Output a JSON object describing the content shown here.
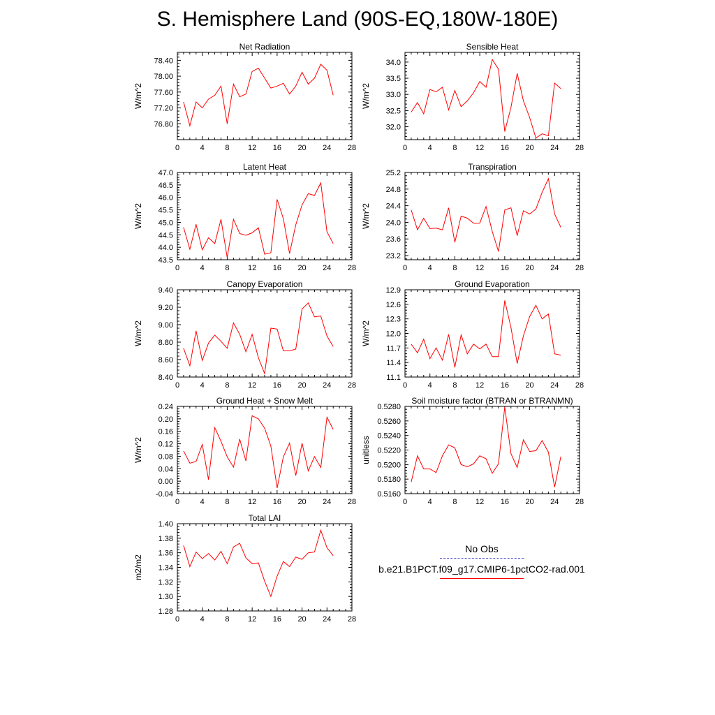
{
  "title": "S. Hemisphere Land (90S-EQ,180W-180E)",
  "colors": {
    "case": "#ff0000",
    "obs": "#4a4acf"
  },
  "legend": {
    "obs_label": "No Obs",
    "case_label": "b.e21.B1PCT.f09_g17.CMIP6-1pctCO2-rad.001"
  },
  "chart_data": [
    {
      "type": "line",
      "title": "Net Radiation",
      "ylabel": "W/m^2",
      "xlim": [
        0,
        28
      ],
      "xticks": [
        "0",
        "4",
        "8",
        "12",
        "16",
        "20",
        "24",
        "28"
      ],
      "ylim": [
        76.4,
        78.6
      ],
      "yticks": [
        "76.80",
        "77.20",
        "77.60",
        "78.00",
        "78.40"
      ],
      "series": [
        {
          "x": [
            1,
            2,
            3,
            4,
            5,
            6,
            7,
            8,
            9,
            10,
            11,
            12,
            13,
            14,
            15,
            16,
            17,
            18,
            19,
            20,
            21,
            22,
            23,
            24,
            25
          ],
          "values": [
            77.35,
            76.75,
            77.35,
            77.2,
            77.42,
            77.52,
            77.75,
            76.8,
            77.8,
            77.48,
            77.55,
            78.12,
            78.2,
            77.95,
            77.7,
            77.75,
            77.82,
            77.55,
            77.75,
            78.1,
            77.8,
            77.95,
            78.3,
            78.15,
            77.52
          ]
        }
      ]
    },
    {
      "type": "line",
      "title": "Sensible Heat",
      "ylabel": "W/m^2",
      "xlim": [
        0,
        28
      ],
      "xticks": [
        "0",
        "4",
        "8",
        "12",
        "16",
        "20",
        "24",
        "28"
      ],
      "ylim": [
        31.6,
        34.3
      ],
      "yticks": [
        "32.0",
        "32.5",
        "33.0",
        "33.5",
        "34.0"
      ],
      "series": [
        {
          "x": [
            1,
            2,
            3,
            4,
            5,
            6,
            7,
            8,
            9,
            10,
            11,
            12,
            13,
            14,
            15,
            16,
            17,
            18,
            19,
            20,
            21,
            22,
            23,
            24,
            25
          ],
          "values": [
            32.45,
            32.75,
            32.4,
            33.15,
            33.08,
            33.22,
            32.52,
            33.12,
            32.62,
            32.8,
            33.05,
            33.4,
            33.22,
            34.08,
            33.78,
            31.85,
            32.6,
            33.65,
            32.8,
            32.28,
            31.65,
            31.78,
            31.72,
            33.35,
            33.18
          ]
        }
      ]
    },
    {
      "type": "line",
      "title": "Latent Heat",
      "ylabel": "W/m^2",
      "xlim": [
        0,
        28
      ],
      "xticks": [
        "0",
        "4",
        "8",
        "12",
        "16",
        "20",
        "24",
        "28"
      ],
      "ylim": [
        43.5,
        47.0
      ],
      "yticks": [
        "43.5",
        "44.0",
        "44.5",
        "45.0",
        "45.5",
        "46.0",
        "46.5",
        "47.0"
      ],
      "series": [
        {
          "x": [
            1,
            2,
            3,
            4,
            5,
            6,
            7,
            8,
            9,
            10,
            11,
            12,
            13,
            14,
            15,
            16,
            17,
            18,
            19,
            20,
            21,
            22,
            23,
            24,
            25
          ],
          "values": [
            44.8,
            43.92,
            44.92,
            43.9,
            44.38,
            44.15,
            45.12,
            43.58,
            45.12,
            44.55,
            44.48,
            44.58,
            44.78,
            43.72,
            43.78,
            45.92,
            45.15,
            43.75,
            44.9,
            45.7,
            46.15,
            46.08,
            46.58,
            44.62,
            44.15
          ]
        }
      ]
    },
    {
      "type": "line",
      "title": "Transpiration",
      "ylabel": "W/m^2",
      "xlim": [
        0,
        28
      ],
      "xticks": [
        "0",
        "4",
        "8",
        "12",
        "16",
        "20",
        "24",
        "28"
      ],
      "ylim": [
        23.1,
        25.2
      ],
      "yticks": [
        "23.2",
        "23.6",
        "24.0",
        "24.4",
        "24.8",
        "25.2"
      ],
      "series": [
        {
          "x": [
            1,
            2,
            3,
            4,
            5,
            6,
            7,
            8,
            9,
            10,
            11,
            12,
            13,
            14,
            15,
            16,
            17,
            18,
            19,
            20,
            21,
            22,
            23,
            24,
            25
          ],
          "values": [
            24.3,
            23.82,
            24.1,
            23.85,
            23.86,
            23.82,
            24.35,
            23.52,
            24.15,
            24.1,
            23.98,
            23.98,
            24.38,
            23.78,
            23.3,
            24.3,
            24.35,
            23.68,
            24.28,
            24.2,
            24.32,
            24.72,
            25.05,
            24.2,
            23.88
          ]
        }
      ]
    },
    {
      "type": "line",
      "title": "Canopy Evaporation",
      "ylabel": "W/m^2",
      "xlim": [
        0,
        28
      ],
      "xticks": [
        "0",
        "4",
        "8",
        "12",
        "16",
        "20",
        "24",
        "28"
      ],
      "ylim": [
        8.4,
        9.4
      ],
      "yticks": [
        "8.40",
        "8.60",
        "8.80",
        "9.00",
        "9.20",
        "9.40"
      ],
      "series": [
        {
          "x": [
            1,
            2,
            3,
            4,
            5,
            6,
            7,
            8,
            9,
            10,
            11,
            12,
            13,
            14,
            15,
            16,
            17,
            18,
            19,
            20,
            21,
            22,
            23,
            24,
            25
          ],
          "values": [
            8.73,
            8.53,
            8.93,
            8.59,
            8.79,
            8.88,
            8.81,
            8.73,
            9.02,
            8.89,
            8.69,
            8.89,
            8.62,
            8.44,
            8.96,
            8.95,
            8.7,
            8.7,
            8.72,
            9.18,
            9.25,
            9.09,
            9.1,
            8.87,
            8.75
          ]
        }
      ]
    },
    {
      "type": "line",
      "title": "Ground Evaporation",
      "ylabel": "W/m^2",
      "xlim": [
        0,
        28
      ],
      "xticks": [
        "0",
        "4",
        "8",
        "12",
        "16",
        "20",
        "24",
        "28"
      ],
      "ylim": [
        11.1,
        12.9
      ],
      "yticks": [
        "11.1",
        "11.4",
        "11.7",
        "12.0",
        "12.3",
        "12.6",
        "12.9"
      ],
      "series": [
        {
          "x": [
            1,
            2,
            3,
            4,
            5,
            6,
            7,
            8,
            9,
            10,
            11,
            12,
            13,
            14,
            15,
            16,
            17,
            18,
            19,
            20,
            21,
            22,
            23,
            24,
            25
          ],
          "values": [
            11.78,
            11.6,
            11.88,
            11.48,
            11.7,
            11.45,
            11.98,
            11.3,
            11.97,
            11.58,
            11.78,
            11.68,
            11.78,
            11.52,
            11.52,
            12.68,
            12.12,
            11.38,
            11.95,
            12.35,
            12.58,
            12.3,
            12.4,
            11.58,
            11.55
          ]
        }
      ]
    },
    {
      "type": "line",
      "title": "Ground Heat + Snow Melt",
      "ylabel": "W/m^2",
      "xlim": [
        0,
        28
      ],
      "xticks": [
        "0",
        "4",
        "8",
        "12",
        "16",
        "20",
        "24",
        "28"
      ],
      "ylim": [
        -0.04,
        0.24
      ],
      "yticks": [
        "-0.04",
        "0.00",
        "0.04",
        "0.08",
        "0.12",
        "0.16",
        "0.20",
        "0.24"
      ],
      "series": [
        {
          "x": [
            1,
            2,
            3,
            4,
            5,
            6,
            7,
            8,
            9,
            10,
            11,
            12,
            13,
            14,
            15,
            16,
            17,
            18,
            19,
            20,
            21,
            22,
            23,
            24,
            25
          ],
          "values": [
            0.097,
            0.058,
            0.063,
            0.118,
            0.005,
            0.172,
            0.128,
            0.078,
            0.045,
            0.135,
            0.065,
            0.21,
            0.2,
            0.17,
            0.113,
            -0.022,
            0.078,
            0.122,
            0.018,
            0.122,
            0.033,
            0.079,
            0.044,
            0.205,
            0.166
          ]
        }
      ]
    },
    {
      "type": "line",
      "title": "Soil moisture factor (BTRAN or BTRANMN)",
      "ylabel": "unitless",
      "xlim": [
        0,
        28
      ],
      "xticks": [
        "0",
        "4",
        "8",
        "12",
        "16",
        "20",
        "24",
        "28"
      ],
      "ylim": [
        0.516,
        0.528
      ],
      "yticks": [
        "0.5160",
        "0.5180",
        "0.5200",
        "0.5220",
        "0.5240",
        "0.5260",
        "0.5280"
      ],
      "series": [
        {
          "x": [
            1,
            2,
            3,
            4,
            5,
            6,
            7,
            8,
            9,
            10,
            11,
            12,
            13,
            14,
            15,
            16,
            17,
            18,
            19,
            20,
            21,
            22,
            23,
            24,
            25
          ],
          "values": [
            0.5176,
            0.5212,
            0.5194,
            0.5194,
            0.5189,
            0.5212,
            0.5227,
            0.5223,
            0.52,
            0.5197,
            0.5201,
            0.5212,
            0.5208,
            0.5188,
            0.5201,
            0.5279,
            0.5215,
            0.5196,
            0.5234,
            0.5218,
            0.5219,
            0.5233,
            0.5217,
            0.5169,
            0.5211
          ]
        }
      ]
    },
    {
      "type": "line",
      "title": "Total LAI",
      "ylabel": "m2/m2",
      "xlim": [
        0,
        28
      ],
      "xticks": [
        "0",
        "4",
        "8",
        "12",
        "16",
        "20",
        "24",
        "28"
      ],
      "ylim": [
        1.28,
        1.4
      ],
      "yticks": [
        "1.28",
        "1.30",
        "1.32",
        "1.34",
        "1.36",
        "1.38",
        "1.40"
      ],
      "series": [
        {
          "x": [
            1,
            2,
            3,
            4,
            5,
            6,
            7,
            8,
            9,
            10,
            11,
            12,
            13,
            14,
            15,
            16,
            17,
            18,
            19,
            20,
            21,
            22,
            23,
            24,
            25
          ],
          "values": [
            1.37,
            1.341,
            1.361,
            1.352,
            1.359,
            1.35,
            1.362,
            1.345,
            1.368,
            1.373,
            1.353,
            1.345,
            1.346,
            1.321,
            1.3,
            1.328,
            1.348,
            1.341,
            1.354,
            1.351,
            1.36,
            1.361,
            1.391,
            1.367,
            1.356
          ]
        }
      ]
    }
  ]
}
